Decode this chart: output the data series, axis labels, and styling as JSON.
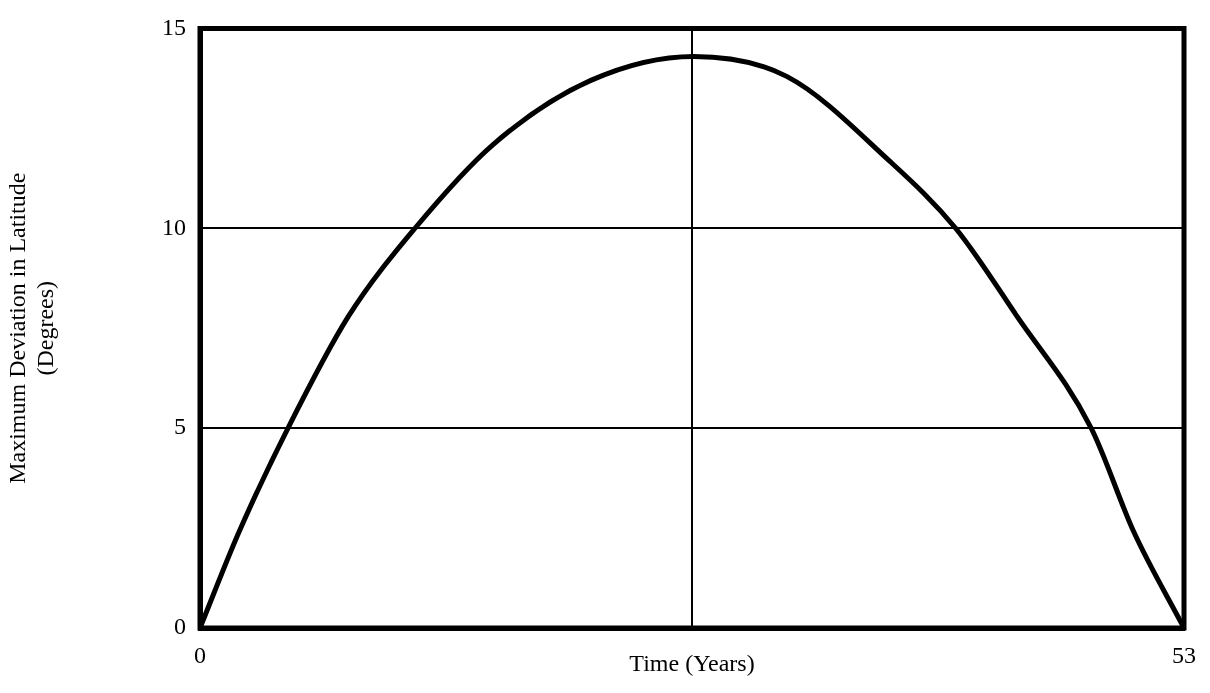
{
  "chart_data": {
    "type": "line",
    "xlabel": "Time (Years)",
    "ylabel": "Maximum Deviation in Latitude\n(Degrees)",
    "series": [
      {
        "color": "#000000",
        "x": [
          0,
          2.1,
          4.74,
          8,
          11.58,
          15.8,
          21.05,
          26.6,
          31.6,
          37.1,
          40.7,
          44,
          48,
          50.3,
          53
        ],
        "values": [
          0,
          2.4,
          5,
          7.8,
          10,
          12.1,
          13.7,
          14.3,
          13.8,
          11.7,
          10,
          7.8,
          5,
          2.4,
          0
        ]
      }
    ],
    "xlim": [
      0,
      53
    ],
    "xticks": [
      0,
      {
        "value": 26.5,
        "label": null
      },
      53
    ],
    "ylim": [
      0,
      15
    ],
    "yticks": [
      0,
      5,
      10,
      15
    ],
    "grid": true,
    "legend": false,
    "marker": "none",
    "line_style": "solid"
  }
}
